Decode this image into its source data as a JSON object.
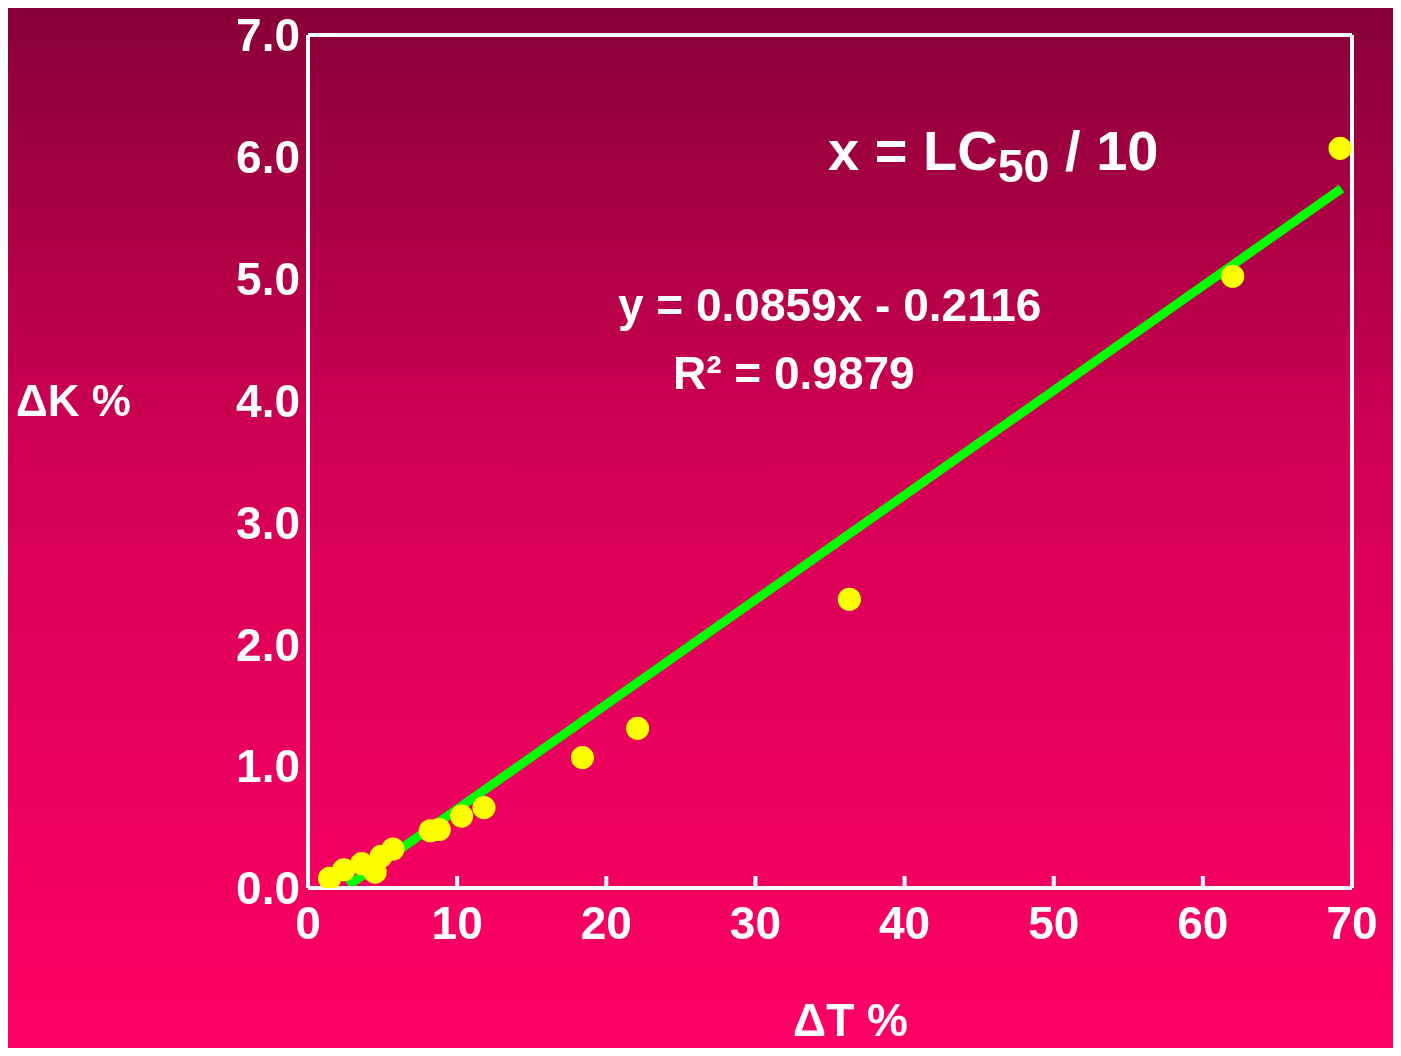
{
  "chart_data": {
    "type": "scatter",
    "xlabel": "ΔT %",
    "ylabel": "ΔK %",
    "annotations": [
      "x = LC$_{50}$ / 10",
      "y = 0.0859x - 0.2116",
      "R² = 0.9879"
    ],
    "xlim": [
      0,
      70
    ],
    "xticks": [
      0,
      10,
      20,
      30,
      40,
      50,
      60,
      70
    ],
    "ylim": [
      0,
      7
    ],
    "yticks": [
      {
        "value": 0,
        "label": "0.0"
      },
      {
        "value": 1,
        "label": "1.0"
      },
      {
        "value": 2,
        "label": "2.0"
      },
      {
        "value": 3,
        "label": "3.0"
      },
      {
        "value": 4,
        "label": "4.0"
      },
      {
        "value": 5,
        "label": "5.0"
      },
      {
        "value": 6,
        "label": "6.0"
      },
      {
        "value": 7,
        "label": "7.0"
      }
    ],
    "grid": false,
    "series": [
      {
        "color": "#ffff00",
        "marker": "circle",
        "x": [
          1.45,
          2.4,
          3.6,
          4.5,
          4.9,
          5.7,
          8.2,
          8.8,
          10.3,
          11.8,
          18.4,
          22.1,
          36.3,
          62.0,
          69.2
        ],
        "values": [
          0.08,
          0.15,
          0.2,
          0.13,
          0.26,
          0.32,
          0.47,
          0.48,
          0.59,
          0.66,
          1.07,
          1.31,
          2.37,
          5.02,
          6.07
        ]
      },
      {
        "type": "line",
        "marker": "none",
        "color": "#00ff00",
        "x": [
          2.7,
          69.3
        ],
        "values": [
          0.02,
          5.74
        ]
      }
    ]
  }
}
